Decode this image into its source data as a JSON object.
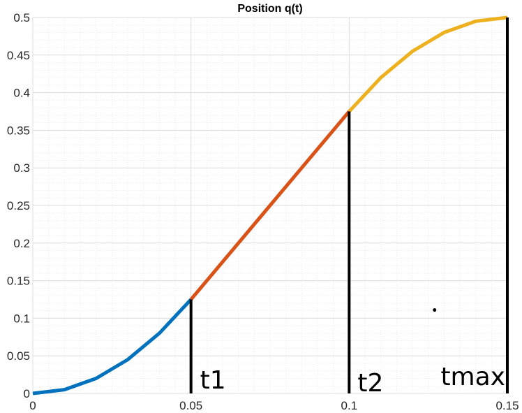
{
  "chart_data": {
    "type": "line",
    "title": "Position q(t)",
    "xlabel": "",
    "ylabel": "",
    "xlim": [
      0,
      0.15
    ],
    "ylim": [
      0,
      0.5
    ],
    "x_ticks": [
      "0",
      "0.05",
      "0.1",
      "0.15"
    ],
    "y_ticks": [
      "0",
      "0.05",
      "0.1",
      "0.15",
      "0.2",
      "0.25",
      "0.3",
      "0.35",
      "0.4",
      "0.45",
      "0.5"
    ],
    "grid": true,
    "minor_grid": true,
    "series": [
      {
        "color": "#0072BD",
        "x": [
          0,
          0.01,
          0.02,
          0.03,
          0.04,
          0.05
        ],
        "y": [
          0,
          0.005,
          0.02,
          0.045,
          0.08,
          0.125
        ]
      },
      {
        "color": "#D95319",
        "x": [
          0.05,
          0.075,
          0.1
        ],
        "y": [
          0.125,
          0.25,
          0.375
        ]
      },
      {
        "color": "#EDB120",
        "x": [
          0.1,
          0.11,
          0.12,
          0.13,
          0.14,
          0.15
        ],
        "y": [
          0.375,
          0.42,
          0.455,
          0.48,
          0.495,
          0.5
        ]
      }
    ],
    "markers": [
      {
        "label": "t1",
        "x": 0.05,
        "y": 0.125
      },
      {
        "label": "t2",
        "x": 0.1,
        "y": 0.375
      },
      {
        "label": "tmax",
        "x": 0.15,
        "y": 0.5
      }
    ],
    "dot": {
      "x": 0.127,
      "y": 0.111
    },
    "colors": {
      "grid_major": "#dcdcdc",
      "grid_minor": "#ececec",
      "marker_line": "#000000"
    }
  }
}
